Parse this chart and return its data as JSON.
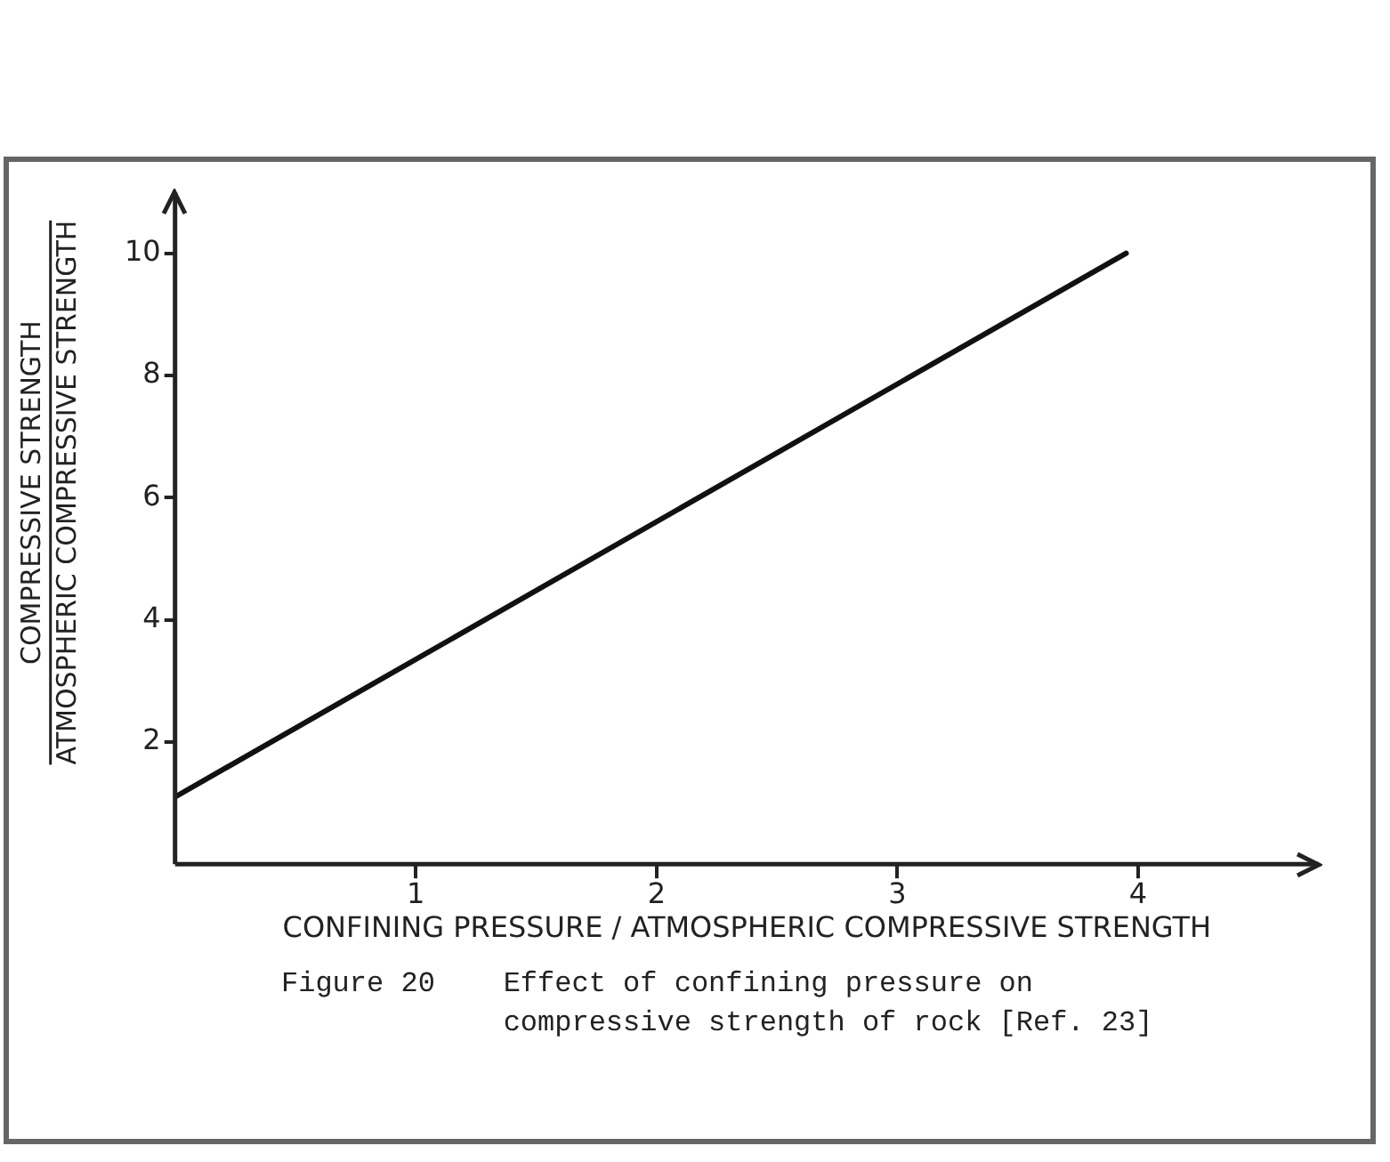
{
  "chart_data": {
    "type": "line",
    "xlabel": "CONFINING PRESSURE / ATMOSPHERIC COMPRESSIVE STRENGTH",
    "ylabel": "COMPRESSIVE STRENGTH\nATMOSPHERIC COMPRESSIVE STRENGTH",
    "x": [
      0,
      3.95
    ],
    "series": [
      {
        "color": "#111111",
        "values": [
          1.1,
          10
        ]
      }
    ],
    "xlim": [
      0,
      4.75
    ],
    "xticks": [
      1,
      2,
      3,
      4
    ],
    "ylim": [
      0,
      11
    ],
    "yticks": [
      2,
      4,
      6,
      8,
      10
    ],
    "grid": false,
    "legend": false,
    "marker": "none",
    "line_style": "solid",
    "annotations": [
      "Figure 20    Effect of confining pressure on\n             compressive strength of rock [Ref. 23]"
    ]
  }
}
